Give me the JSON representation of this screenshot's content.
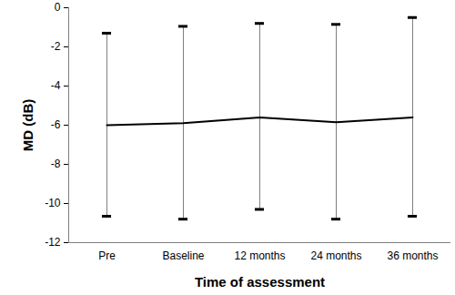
{
  "chart_data": {
    "type": "line",
    "xlabel": "Time of assessment",
    "ylabel": "MD (dB)",
    "categories": [
      "Pre",
      "Baseline",
      "12 months",
      "24 months",
      "36 months"
    ],
    "values": [
      -6.0,
      -5.9,
      -5.6,
      -5.85,
      -5.6
    ],
    "lower": [
      -10.65,
      -10.8,
      -10.3,
      -10.8,
      -10.65
    ],
    "upper": [
      -1.3,
      -0.95,
      -0.8,
      -0.85,
      -0.5
    ],
    "color": "#000000",
    "ylim": [
      -12,
      0
    ],
    "yticks": [
      -12,
      -10,
      -8,
      -6,
      -4,
      -2,
      0
    ],
    "grid": false
  }
}
